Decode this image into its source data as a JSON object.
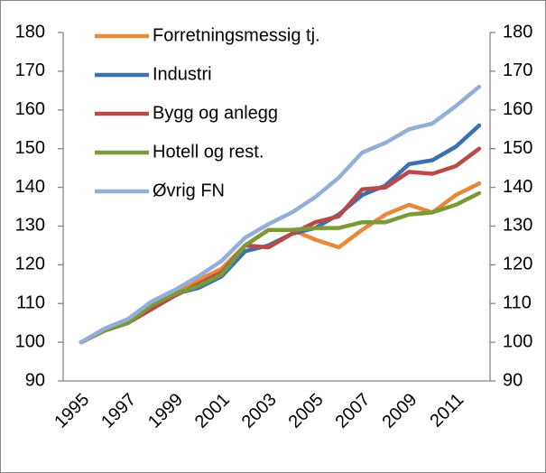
{
  "chart_data": {
    "type": "line",
    "categories": [
      "1995",
      null,
      "1997",
      null,
      "1999",
      null,
      "2001",
      null,
      "2003",
      null,
      "2005",
      null,
      "2007",
      null,
      "2009",
      null,
      "2011",
      null
    ],
    "series": [
      {
        "name": "Forretningsmessig tj.",
        "color": "#e8883a",
        "values": [
          100,
          103,
          105,
          109,
          113,
          116,
          119,
          125,
          129,
          129,
          126.5,
          124.5,
          129,
          133,
          135.5,
          133.5,
          138,
          141
        ]
      },
      {
        "name": "Industri",
        "color": "#3e6fae",
        "values": [
          100,
          103,
          105,
          109,
          112.5,
          114,
          117,
          123.5,
          125,
          128,
          129.5,
          133,
          138,
          140.5,
          146,
          147,
          150.5,
          156
        ]
      },
      {
        "name": "Bygg og anlegg",
        "color": "#b94a48",
        "values": [
          100,
          103,
          105,
          108.5,
          112,
          115,
          118,
          125,
          124.5,
          128,
          131,
          132.5,
          139.5,
          140,
          144,
          143.5,
          145.5,
          150
        ]
      },
      {
        "name": "Hotell og rest.",
        "color": "#7a9a3a",
        "values": [
          100,
          103,
          105,
          109.5,
          112.5,
          114.5,
          117.5,
          125,
          129,
          129,
          129.5,
          129.5,
          131,
          131,
          133,
          133.5,
          135.5,
          138.5
        ]
      },
      {
        "name": "Øvrig FN",
        "color": "#94aed8",
        "values": [
          100,
          103.5,
          106,
          110.5,
          113.5,
          117,
          121,
          127,
          130.5,
          133.5,
          137.5,
          142.5,
          149,
          151.5,
          155,
          156.5,
          161,
          166
        ]
      }
    ],
    "ylim": [
      90,
      180
    ],
    "yticks": [
      90,
      100,
      110,
      120,
      130,
      140,
      150,
      160,
      170,
      180
    ],
    "y2lim": [
      90,
      180
    ],
    "y2ticks": [
      90,
      100,
      110,
      120,
      130,
      140,
      150,
      160,
      170,
      180
    ],
    "legend": "upper left"
  }
}
